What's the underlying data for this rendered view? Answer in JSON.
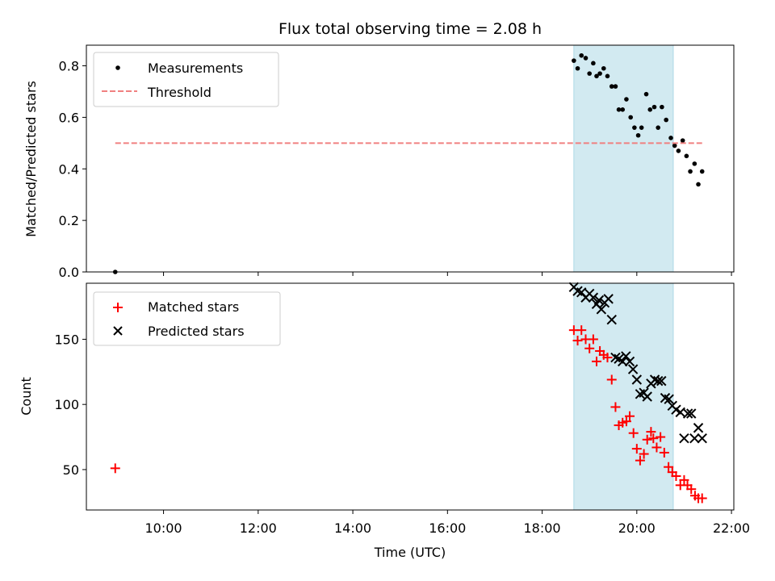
{
  "title": "Flux total observing time = 2.08 h",
  "x_axis": {
    "label": "Time (UTC)",
    "ticks": [
      {
        "value": 10,
        "label": "10:00"
      },
      {
        "value": 12,
        "label": "12:00"
      },
      {
        "value": 14,
        "label": "14:00"
      },
      {
        "value": 16,
        "label": "16:00"
      },
      {
        "value": 18,
        "label": "18:00"
      },
      {
        "value": 20,
        "label": "20:00"
      },
      {
        "value": 22,
        "label": "22:00"
      }
    ],
    "range": [
      8.37,
      22.05
    ]
  },
  "shaded_span": {
    "start": 18.67,
    "end": 20.77,
    "color": "#add8e6"
  },
  "colors": {
    "measurements": "#000000",
    "threshold": "#f08080",
    "matched": "#ff0000",
    "predicted": "#000000"
  },
  "chart_data": [
    {
      "type": "scatter",
      "ylabel": "Matched/Predicted stars",
      "ylim": [
        0,
        0.88
      ],
      "yticks": [
        {
          "value": 0,
          "label": "0.0"
        },
        {
          "value": 0.2,
          "label": "0.2"
        },
        {
          "value": 0.4,
          "label": "0.4"
        },
        {
          "value": 0.6,
          "label": "0.6"
        },
        {
          "value": 0.8,
          "label": "0.8"
        }
      ],
      "legend": {
        "position": "top-left",
        "entries": [
          "Measurements",
          "Threshold"
        ]
      },
      "series": [
        {
          "name": "Measurements",
          "marker": "dot",
          "points": [
            [
              8.98,
              0.0
            ],
            [
              18.67,
              0.82
            ],
            [
              18.75,
              0.79
            ],
            [
              18.83,
              0.84
            ],
            [
              18.92,
              0.83
            ],
            [
              19.0,
              0.77
            ],
            [
              19.08,
              0.81
            ],
            [
              19.15,
              0.76
            ],
            [
              19.22,
              0.77
            ],
            [
              19.3,
              0.79
            ],
            [
              19.38,
              0.76
            ],
            [
              19.47,
              0.72
            ],
            [
              19.55,
              0.72
            ],
            [
              19.62,
              0.63
            ],
            [
              19.7,
              0.63
            ],
            [
              19.78,
              0.67
            ],
            [
              19.87,
              0.6
            ],
            [
              19.95,
              0.56
            ],
            [
              20.03,
              0.53
            ],
            [
              20.1,
              0.56
            ],
            [
              20.2,
              0.69
            ],
            [
              20.28,
              0.63
            ],
            [
              20.37,
              0.64
            ],
            [
              20.45,
              0.56
            ],
            [
              20.53,
              0.64
            ],
            [
              20.62,
              0.59
            ],
            [
              20.72,
              0.52
            ],
            [
              20.8,
              0.49
            ],
            [
              20.88,
              0.47
            ],
            [
              20.97,
              0.51
            ],
            [
              21.05,
              0.45
            ],
            [
              21.13,
              0.39
            ],
            [
              21.22,
              0.42
            ],
            [
              21.3,
              0.34
            ],
            [
              21.38,
              0.39
            ]
          ]
        },
        {
          "name": "Threshold",
          "line": "dashed",
          "points": [
            [
              8.98,
              0.5
            ],
            [
              21.38,
              0.5
            ]
          ]
        }
      ]
    },
    {
      "type": "scatter",
      "ylabel": "Count",
      "ylim": [
        19,
        193
      ],
      "yticks": [
        {
          "value": 50,
          "label": "50"
        },
        {
          "value": 100,
          "label": "100"
        },
        {
          "value": 150,
          "label": "150"
        }
      ],
      "legend": {
        "position": "top-left",
        "entries": [
          "Matched stars",
          "Predicted stars"
        ]
      },
      "series": [
        {
          "name": "Matched stars",
          "marker": "plus",
          "points": [
            [
              8.98,
              51
            ],
            [
              18.67,
              157
            ],
            [
              18.75,
              149
            ],
            [
              18.83,
              157
            ],
            [
              18.92,
              150
            ],
            [
              19.0,
              143
            ],
            [
              19.08,
              150
            ],
            [
              19.15,
              133
            ],
            [
              19.22,
              141
            ],
            [
              19.3,
              138
            ],
            [
              19.38,
              136
            ],
            [
              19.47,
              119
            ],
            [
              19.55,
              98
            ],
            [
              19.62,
              84
            ],
            [
              19.7,
              86
            ],
            [
              19.78,
              87
            ],
            [
              19.85,
              91
            ],
            [
              19.93,
              78
            ],
            [
              20.0,
              66
            ],
            [
              20.07,
              57
            ],
            [
              20.15,
              62
            ],
            [
              20.22,
              73
            ],
            [
              20.3,
              79
            ],
            [
              20.35,
              74
            ],
            [
              20.42,
              67
            ],
            [
              20.5,
              75
            ],
            [
              20.58,
              63
            ],
            [
              20.67,
              52
            ],
            [
              20.75,
              48
            ],
            [
              20.83,
              45
            ],
            [
              20.92,
              38
            ],
            [
              21.0,
              42
            ],
            [
              21.07,
              38
            ],
            [
              21.15,
              35
            ],
            [
              21.23,
              30
            ],
            [
              21.3,
              28
            ],
            [
              21.38,
              28
            ]
          ]
        },
        {
          "name": "Predicted stars",
          "marker": "x",
          "points": [
            [
              18.67,
              190
            ],
            [
              18.75,
              187
            ],
            [
              18.83,
              186
            ],
            [
              18.92,
              182
            ],
            [
              19.0,
              185
            ],
            [
              19.08,
              182
            ],
            [
              19.15,
              177
            ],
            [
              19.2,
              180
            ],
            [
              19.25,
              173
            ],
            [
              19.32,
              178
            ],
            [
              19.4,
              181
            ],
            [
              19.47,
              165
            ],
            [
              19.55,
              136
            ],
            [
              19.62,
              135
            ],
            [
              19.7,
              133
            ],
            [
              19.77,
              137
            ],
            [
              19.85,
              133
            ],
            [
              19.92,
              127
            ],
            [
              20.0,
              119
            ],
            [
              20.07,
              108
            ],
            [
              20.15,
              109
            ],
            [
              20.22,
              106
            ],
            [
              20.3,
              116
            ],
            [
              20.38,
              119
            ],
            [
              20.45,
              118
            ],
            [
              20.52,
              118
            ],
            [
              20.6,
              105
            ],
            [
              20.68,
              104
            ],
            [
              20.75,
              99
            ],
            [
              20.83,
              96
            ],
            [
              20.92,
              94
            ],
            [
              21.0,
              74
            ],
            [
              21.08,
              93
            ],
            [
              21.15,
              93
            ],
            [
              21.22,
              74
            ],
            [
              21.3,
              82
            ],
            [
              21.38,
              74
            ]
          ]
        }
      ]
    }
  ]
}
